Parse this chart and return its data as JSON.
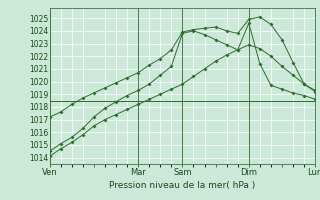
{
  "xlabel": "Pression niveau de la mer( hPa )",
  "bg_color": "#cce8d8",
  "line_color": "#2d6e2d",
  "ylim": [
    1013.5,
    1025.8
  ],
  "yticks": [
    1014,
    1015,
    1016,
    1017,
    1018,
    1019,
    1020,
    1021,
    1022,
    1023,
    1024,
    1025
  ],
  "day_labels": [
    "Ven",
    "",
    "Mar",
    "Sam",
    "",
    "Dim",
    "",
    "Lun"
  ],
  "day_positions": [
    0,
    4,
    8,
    12,
    15,
    18,
    21,
    24
  ],
  "vline_positions": [
    0,
    8,
    12,
    18,
    24
  ],
  "s1x": [
    0,
    1,
    2,
    3,
    4,
    5,
    6,
    7,
    8,
    9,
    10,
    11,
    12,
    13,
    14,
    15,
    16,
    17,
    18,
    19,
    20,
    21,
    22,
    23,
    24
  ],
  "s1y": [
    1014.1,
    1014.7,
    1015.2,
    1015.8,
    1016.5,
    1017.0,
    1017.4,
    1017.8,
    1018.2,
    1018.6,
    1019.0,
    1019.4,
    1019.8,
    1020.4,
    1021.0,
    1021.6,
    1022.1,
    1022.5,
    1022.9,
    1022.6,
    1022.0,
    1021.2,
    1020.5,
    1019.8,
    1019.2
  ],
  "s2x": [
    0,
    1,
    2,
    3,
    4,
    5,
    6,
    7,
    8,
    9,
    10,
    11,
    12,
    13,
    14,
    15,
    16,
    17,
    18,
    19,
    20,
    21,
    22,
    23,
    24
  ],
  "s2y": [
    1017.2,
    1017.6,
    1018.2,
    1018.7,
    1019.1,
    1019.5,
    1019.9,
    1020.3,
    1020.7,
    1021.3,
    1021.8,
    1022.5,
    1023.9,
    1024.1,
    1024.2,
    1024.3,
    1024.0,
    1023.8,
    1024.9,
    1025.1,
    1024.5,
    1023.3,
    1021.5,
    1019.8,
    1019.3
  ],
  "s3x": [
    0,
    24
  ],
  "s3y": [
    1018.5,
    1018.5
  ],
  "s4x": [
    0,
    1,
    2,
    3,
    4,
    5,
    6,
    7,
    8,
    9,
    10,
    11,
    12,
    13,
    14,
    15,
    16,
    17,
    18,
    19,
    20,
    21,
    22,
    23,
    24
  ],
  "s4y": [
    1014.5,
    1015.1,
    1015.6,
    1016.3,
    1017.2,
    1017.9,
    1018.4,
    1018.9,
    1019.3,
    1019.8,
    1020.5,
    1021.2,
    1023.8,
    1024.0,
    1023.7,
    1023.3,
    1022.9,
    1022.5,
    1024.6,
    1021.4,
    1019.7,
    1019.4,
    1019.1,
    1018.9,
    1018.6
  ]
}
